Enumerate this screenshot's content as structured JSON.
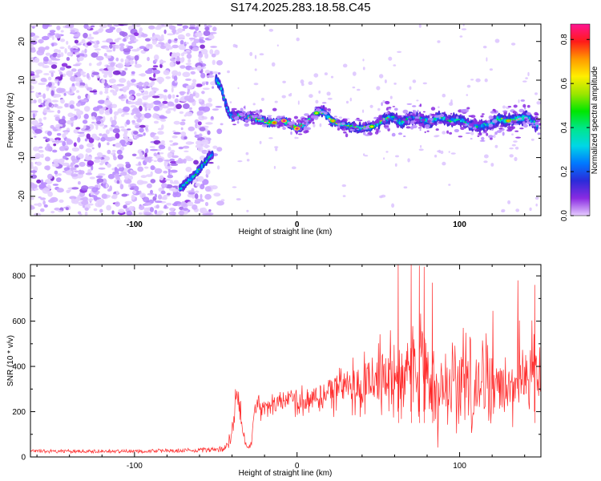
{
  "title": "S174.2025.283.18.58.C45",
  "chart_data": [
    {
      "type": "heatmap",
      "title": "S174.2025.283.18.58.C45",
      "xlabel": "Height of straight line (km)",
      "ylabel": "Frequency (Hz)",
      "xlim": [
        -164,
        150
      ],
      "ylim": [
        -25,
        24.5
      ],
      "x_ticks": [
        -100,
        0,
        100
      ],
      "y_ticks": [
        -20,
        -10,
        0,
        10,
        20
      ],
      "colorbar": {
        "label": "Normalized spectral amplitude",
        "range": [
          0,
          0.87
        ],
        "ticks": [
          "0.0",
          "0.2",
          "0.4",
          "0.6",
          "0.8"
        ],
        "tick_values": [
          0.0,
          0.2,
          0.4,
          0.6,
          0.8
        ],
        "colors": [
          "#e6ccff",
          "#8a2be2",
          "#2b2bd9",
          "#0078ff",
          "#00d7e6",
          "#00e68c",
          "#00e600",
          "#9de600",
          "#ffee00",
          "#ff9900",
          "#ff1a1a",
          "#ff1493"
        ]
      },
      "ridge": {
        "x": [
          -72,
          -68,
          -64,
          -60,
          -56,
          -52,
          -50,
          -48,
          -46,
          -44,
          -42,
          -40,
          -36,
          -30,
          -24,
          -18,
          -12,
          -8,
          -4,
          0,
          4,
          8,
          12,
          16,
          20,
          24,
          28,
          34,
          40,
          46,
          52,
          58,
          64,
          70,
          76,
          82,
          88,
          94,
          100,
          106,
          112,
          118,
          124,
          130,
          136,
          142,
          148
        ],
        "y": [
          -18,
          -16.5,
          -15,
          -13,
          -11,
          -9,
          10.5,
          9,
          7,
          4,
          1.5,
          0.5,
          1,
          0.5,
          0,
          -1,
          -1,
          -0.5,
          -1.5,
          -2.5,
          -1.5,
          0,
          1.5,
          2,
          0,
          -1,
          -1.5,
          -2,
          -2.5,
          -2,
          -0.5,
          0.5,
          -1,
          0.5,
          0,
          -1,
          0.5,
          -0.5,
          0,
          -1.5,
          -2,
          -1.5,
          0,
          -0.5,
          0,
          0.5,
          -2
        ]
      },
      "ridge_amplitude": [
        0.35,
        0.4,
        0.45,
        0.45,
        0.4,
        0.35,
        0.55,
        0.5,
        0.45,
        0.4,
        0.35,
        0.5,
        0.45,
        0.55,
        0.6,
        0.7,
        0.75,
        0.8,
        0.85,
        0.87,
        0.7,
        0.6,
        0.55,
        0.5,
        0.6,
        0.65,
        0.55,
        0.5,
        0.45,
        0.6,
        0.55,
        0.4,
        0.45,
        0.35,
        0.4,
        0.5,
        0.45,
        0.4,
        0.35,
        0.45,
        0.4,
        0.35,
        0.5,
        0.45,
        0.55,
        0.4,
        0.35
      ]
    },
    {
      "type": "line",
      "xlabel": "Height of straight line (km)",
      "ylabel": "SNR (10 * v/v)",
      "xlim": [
        -164,
        150
      ],
      "ylim": [
        0,
        850
      ],
      "x_ticks": [
        -100,
        0,
        100
      ],
      "y_ticks": [
        0,
        200,
        400,
        600,
        800
      ],
      "color": "#ff2a2a",
      "envelope": {
        "x": [
          -164,
          -140,
          -100,
          -60,
          -45,
          -40,
          -38,
          -36,
          -34,
          -32,
          -30,
          -28,
          -26,
          -24,
          -22,
          -20,
          -15,
          -10,
          -5,
          0,
          10,
          20,
          30,
          40,
          50,
          60,
          65,
          70,
          75,
          80,
          90,
          100,
          110,
          120,
          130,
          140,
          150
        ],
        "mean": [
          25,
          25,
          25,
          30,
          35,
          100,
          250,
          260,
          150,
          60,
          40,
          60,
          230,
          250,
          200,
          220,
          230,
          240,
          250,
          255,
          260,
          280,
          310,
          330,
          340,
          350,
          360,
          360,
          350,
          340,
          330,
          320,
          320,
          310,
          320,
          340,
          350
        ],
        "spread": [
          8,
          8,
          8,
          10,
          15,
          60,
          70,
          80,
          70,
          20,
          10,
          20,
          40,
          60,
          60,
          60,
          70,
          70,
          70,
          80,
          90,
          110,
          140,
          160,
          200,
          250,
          280,
          290,
          290,
          280,
          270,
          260,
          250,
          240,
          220,
          200,
          180
        ]
      },
      "peaks": [
        {
          "x": 62,
          "y": 850
        },
        {
          "x": 70,
          "y": 850
        },
        {
          "x": 75,
          "y": 845
        },
        {
          "x": 78,
          "y": 840
        },
        {
          "x": 83,
          "y": 770
        },
        {
          "x": 146,
          "y": 760
        }
      ]
    }
  ]
}
